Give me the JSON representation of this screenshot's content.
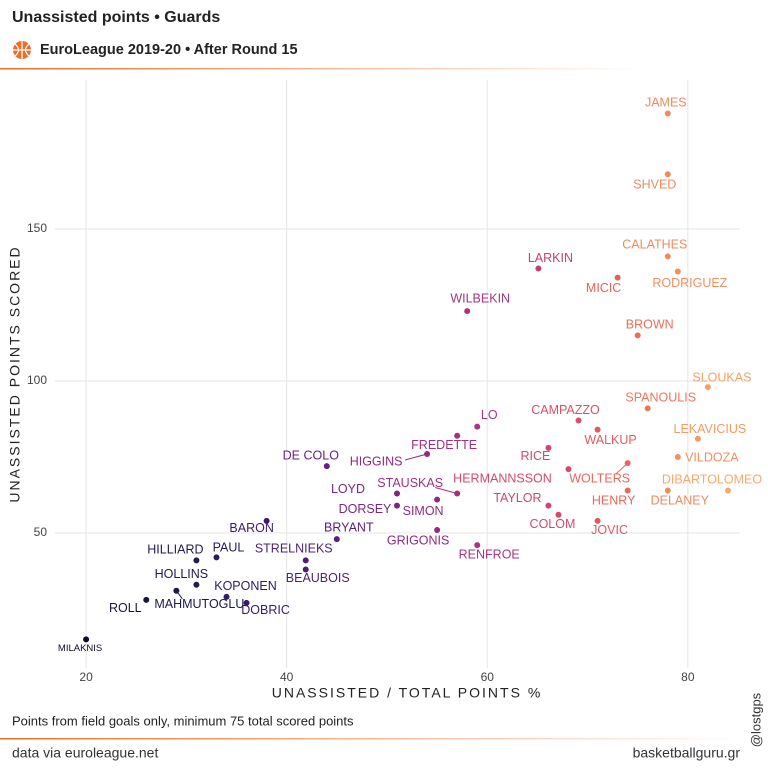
{
  "chart_data": {
    "type": "scatter",
    "title": "Unassisted points • Guards",
    "subtitle": "EuroLeague 2019-20 • After Round 15",
    "x_label": "UNASSISTED / TOTAL POINTS %",
    "y_label": "UNASSISTED POINTS SCORED",
    "caption": "Points from field goals only, minimum 75 total scored points",
    "source": "data via euroleague.net",
    "site": "basketballguru.gr",
    "credit": "@lostgps",
    "labels": [
      "JAMES",
      "SHVED",
      "CALATHES",
      "RODRIGUEZ",
      "MICIC",
      "LARKIN",
      "WILBEKIN",
      "BROWN",
      "SLOUKAS",
      "SPANOULIS",
      "CAMPAZZO",
      "WALKUP",
      "LO",
      "LEKAVICIUS",
      "FREDETTE",
      "RICE",
      "VILDOZA",
      "DE COLO",
      "HIGGINS",
      "WOLTERS",
      "HERMANNSSON",
      "DIBARTOLOMEO",
      "HENRY",
      "DELANEY",
      "STAUSKAS",
      "LOYD",
      "SIMON",
      "DORSEY",
      "TAYLOR",
      "COLOM",
      "JOVIC",
      "BARON",
      "GRIGONIS",
      "BRYANT",
      "RENFROE",
      "STRELNIEKS",
      "HILLIARD",
      "PAUL",
      "BEAUBOIS",
      "HOLLINS",
      "KOPONEN",
      "MAHMUTOGLU",
      "ROLL",
      "DOBRIC",
      "MILAKNIS"
    ],
    "x": [
      78,
      78,
      78,
      79,
      73,
      65.1,
      58,
      75,
      82,
      76,
      69.1,
      71,
      59,
      81,
      57,
      66.1,
      79,
      44,
      54,
      74,
      68.1,
      84,
      74,
      78,
      57,
      51,
      55,
      51,
      66.1,
      67.1,
      71,
      38,
      55,
      45,
      59,
      41.9,
      31,
      33,
      41.9,
      31,
      34,
      29,
      26,
      36,
      20
    ],
    "y": [
      188,
      168,
      141,
      136,
      134,
      137,
      123,
      115,
      98,
      91,
      87,
      84,
      85,
      81,
      82,
      78,
      75,
      72,
      76,
      73,
      71,
      64,
      64,
      64,
      63,
      63,
      61,
      59,
      59,
      56,
      54,
      54,
      51,
      48,
      46,
      41,
      41,
      42,
      38,
      33,
      29,
      31,
      28,
      27,
      15
    ],
    "colors": [
      "#f08a5c",
      "#f08a5c",
      "#f08a5c",
      "#f18f5e",
      "#e4605c",
      "#c73f6e",
      "#a83380",
      "#ea6f5a",
      "#f6a066",
      "#ec765a",
      "#d9506a",
      "#e05a62",
      "#ab3480",
      "#f59a63",
      "#a1317f",
      "#cf476c",
      "#f18f5e",
      "#68207f",
      "#92297f",
      "#e8685c",
      "#d34a6a",
      "#f8a86b",
      "#e8685c",
      "#f08a5c",
      "#a1317f",
      "#7e257f",
      "#92297f",
      "#7e257f",
      "#cf476c",
      "#d34a6a",
      "#e05a62",
      "#3c1d6e",
      "#92297f",
      "#5a1e7c",
      "#ab3480",
      "#4c1f76",
      "#221a52",
      "#2a1b5a",
      "#4c1f76",
      "#221a52",
      "#2f1c62",
      "#1c1848",
      "#161640",
      "#341c66",
      "#0c0c24"
    ],
    "xlim": [
      16.9,
      85.2
    ],
    "ylim": [
      5.6,
      199
    ],
    "xticks": [
      20,
      40,
      60,
      80
    ],
    "yticks": [
      50,
      100,
      150
    ],
    "grid": true
  }
}
